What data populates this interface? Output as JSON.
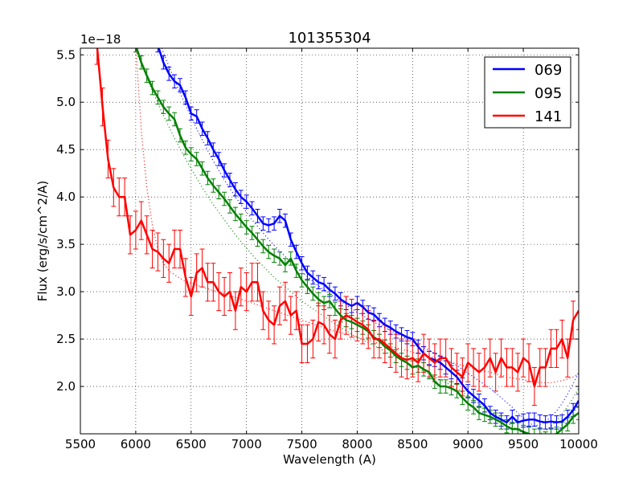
{
  "chart_data": {
    "type": "line",
    "title": "101355304",
    "xlabel": "Wavelength (A)",
    "ylabel": "Flux (erg/s/cm^2/A)",
    "y_scale_label": "1e−18",
    "xlim": [
      5500,
      10000
    ],
    "ylim": [
      1.5,
      5.57
    ],
    "xticks": [
      5500,
      6000,
      6500,
      7000,
      7500,
      8000,
      8500,
      9000,
      9500,
      10000
    ],
    "yticks": [
      2.0,
      2.5,
      3.0,
      3.5,
      4.0,
      4.5,
      5.0,
      5.5
    ],
    "ytick_labels": [
      "2.0",
      "2.5",
      "3.0",
      "3.5",
      "4.0",
      "4.5",
      "5.0",
      "5.5"
    ],
    "grid": true,
    "legend_position": "top-right",
    "series": [
      {
        "name": "069",
        "color": "#0000ff",
        "x": [
          6200,
          6250,
          6300,
          6350,
          6400,
          6450,
          6500,
          6550,
          6600,
          6650,
          6700,
          6750,
          6800,
          6850,
          6900,
          6950,
          7000,
          7050,
          7100,
          7150,
          7200,
          7250,
          7300,
          7350,
          7400,
          7450,
          7500,
          7550,
          7600,
          7650,
          7700,
          7750,
          7800,
          7850,
          7900,
          7950,
          8000,
          8050,
          8100,
          8150,
          8200,
          8250,
          8300,
          8350,
          8400,
          8450,
          8500,
          8550,
          8600,
          8650,
          8700,
          8750,
          8800,
          8850,
          8900,
          8950,
          9000,
          9050,
          9100,
          9150,
          9200,
          9250,
          9300,
          9350,
          9400,
          9450,
          9500,
          9550,
          9600,
          9650,
          9700,
          9750,
          9800,
          9850,
          9900,
          9950,
          10000
        ],
        "y": [
          5.6,
          5.42,
          5.3,
          5.22,
          5.18,
          5.05,
          4.88,
          4.85,
          4.72,
          4.62,
          4.5,
          4.4,
          4.28,
          4.18,
          4.08,
          4.0,
          3.95,
          3.88,
          3.8,
          3.72,
          3.7,
          3.72,
          3.8,
          3.75,
          3.55,
          3.42,
          3.3,
          3.2,
          3.15,
          3.1,
          3.08,
          3.02,
          2.98,
          2.92,
          2.88,
          2.85,
          2.88,
          2.84,
          2.78,
          2.76,
          2.7,
          2.65,
          2.62,
          2.58,
          2.55,
          2.52,
          2.5,
          2.42,
          2.35,
          2.3,
          2.28,
          2.25,
          2.2,
          2.15,
          2.1,
          2.02,
          1.95,
          1.9,
          1.85,
          1.8,
          1.72,
          1.68,
          1.65,
          1.62,
          1.68,
          1.62,
          1.64,
          1.65,
          1.65,
          1.63,
          1.62,
          1.63,
          1.62,
          1.63,
          1.68,
          1.75,
          1.85
        ],
        "err": 0.07,
        "model_dotted": [
          5.7,
          5.52,
          5.38,
          5.24,
          5.1,
          4.97,
          4.84,
          4.72,
          4.6,
          4.49,
          4.38,
          4.28,
          4.18,
          4.09,
          4.0,
          3.92,
          3.84,
          3.76,
          3.69,
          3.62,
          3.55,
          3.49,
          3.43,
          3.37,
          3.31,
          3.26,
          3.21,
          3.16,
          3.11,
          3.06,
          3.02,
          2.98,
          2.94,
          2.9,
          2.86,
          2.82,
          2.78,
          2.75,
          2.71,
          2.68,
          2.65,
          2.62,
          2.59,
          2.56,
          2.53,
          2.5,
          2.47,
          2.44,
          2.41,
          2.38,
          2.35,
          2.32,
          2.29,
          2.25,
          2.22,
          2.18,
          2.14,
          2.1,
          2.06,
          2.02,
          1.98,
          1.93,
          1.88,
          1.83,
          1.78,
          1.72,
          1.67,
          1.62,
          1.58,
          1.6,
          1.63,
          1.68,
          1.74,
          1.82,
          1.92,
          2.03,
          2.15
        ]
      },
      {
        "name": "095",
        "color": "#008000",
        "x": [
          6000,
          6050,
          6100,
          6150,
          6200,
          6250,
          6300,
          6350,
          6400,
          6450,
          6500,
          6550,
          6600,
          6650,
          6700,
          6750,
          6800,
          6850,
          6900,
          6950,
          7000,
          7050,
          7100,
          7150,
          7200,
          7250,
          7300,
          7350,
          7400,
          7450,
          7500,
          7550,
          7600,
          7650,
          7700,
          7750,
          7800,
          7850,
          7900,
          7950,
          8000,
          8050,
          8100,
          8150,
          8200,
          8250,
          8300,
          8350,
          8400,
          8450,
          8500,
          8550,
          8600,
          8650,
          8700,
          8750,
          8800,
          8850,
          8900,
          8950,
          9000,
          9050,
          9100,
          9150,
          9200,
          9250,
          9300,
          9350,
          9400,
          9450,
          9500,
          9550,
          9600,
          9650,
          9700,
          9750,
          9800,
          9850,
          9900,
          9950,
          10000
        ],
        "y": [
          5.6,
          5.42,
          5.28,
          5.15,
          5.05,
          4.95,
          4.88,
          4.82,
          4.65,
          4.52,
          4.45,
          4.4,
          4.3,
          4.2,
          4.12,
          4.05,
          3.98,
          3.9,
          3.82,
          3.75,
          3.68,
          3.62,
          3.55,
          3.48,
          3.42,
          3.38,
          3.35,
          3.28,
          3.35,
          3.22,
          3.12,
          3.05,
          2.98,
          2.92,
          2.88,
          2.9,
          2.82,
          2.75,
          2.7,
          2.68,
          2.65,
          2.62,
          2.58,
          2.52,
          2.48,
          2.42,
          2.38,
          2.32,
          2.28,
          2.25,
          2.2,
          2.22,
          2.18,
          2.15,
          2.05,
          2.0,
          2.0,
          1.98,
          1.95,
          1.88,
          1.82,
          1.78,
          1.72,
          1.7,
          1.68,
          1.65,
          1.62,
          1.58,
          1.55,
          1.55,
          1.52,
          1.5,
          1.48,
          1.48,
          1.45,
          1.48,
          1.5,
          1.55,
          1.6,
          1.68,
          1.72
        ],
        "err": 0.07,
        "model_dotted": [
          5.55,
          5.4,
          5.26,
          5.12,
          4.99,
          4.86,
          4.74,
          4.62,
          4.51,
          4.4,
          4.3,
          4.2,
          4.1,
          4.01,
          3.92,
          3.84,
          3.76,
          3.68,
          3.6,
          3.53,
          3.46,
          3.39,
          3.33,
          3.27,
          3.21,
          3.15,
          3.1,
          3.05,
          3.0,
          2.95,
          2.9,
          2.86,
          2.82,
          2.78,
          2.74,
          2.7,
          2.66,
          2.62,
          2.59,
          2.55,
          2.52,
          2.49,
          2.46,
          2.43,
          2.4,
          2.37,
          2.34,
          2.31,
          2.28,
          2.25,
          2.22,
          2.19,
          2.16,
          2.13,
          2.1,
          2.07,
          2.04,
          2.01,
          1.98,
          1.94,
          1.9,
          1.86,
          1.82,
          1.78,
          1.74,
          1.7,
          1.66,
          1.62,
          1.58,
          1.54,
          1.5,
          1.48,
          1.48,
          1.5,
          1.53,
          1.58,
          1.64,
          1.71,
          1.79,
          1.88,
          1.98
        ]
      },
      {
        "name": "141",
        "color": "#ff0000",
        "x": [
          5650,
          5700,
          5750,
          5800,
          5850,
          5900,
          5950,
          6000,
          6050,
          6100,
          6150,
          6200,
          6250,
          6300,
          6350,
          6400,
          6450,
          6500,
          6550,
          6600,
          6650,
          6700,
          6750,
          6800,
          6850,
          6900,
          6950,
          7000,
          7050,
          7100,
          7150,
          7200,
          7250,
          7300,
          7350,
          7400,
          7450,
          7500,
          7550,
          7600,
          7650,
          7700,
          7750,
          7800,
          7850,
          7900,
          7950,
          8000,
          8050,
          8100,
          8150,
          8200,
          8250,
          8300,
          8350,
          8400,
          8450,
          8500,
          8550,
          8600,
          8650,
          8700,
          8750,
          8800,
          8850,
          8900,
          8950,
          9000,
          9050,
          9100,
          9150,
          9200,
          9250,
          9300,
          9350,
          9400,
          9450,
          9500,
          9550,
          9600,
          9650,
          9700,
          9750,
          9800,
          9850,
          9900,
          9950,
          10000
        ],
        "y": [
          5.6,
          4.95,
          4.4,
          4.1,
          4.0,
          4.0,
          3.6,
          3.65,
          3.75,
          3.6,
          3.45,
          3.42,
          3.35,
          3.3,
          3.45,
          3.45,
          3.15,
          2.95,
          3.2,
          3.25,
          3.1,
          3.1,
          3.0,
          2.95,
          3.0,
          2.8,
          3.05,
          3.0,
          3.1,
          3.1,
          2.8,
          2.7,
          2.65,
          2.85,
          2.9,
          2.75,
          2.8,
          2.45,
          2.45,
          2.5,
          2.68,
          2.65,
          2.55,
          2.5,
          2.7,
          2.75,
          2.72,
          2.68,
          2.65,
          2.6,
          2.5,
          2.5,
          2.45,
          2.4,
          2.35,
          2.3,
          2.28,
          2.3,
          2.25,
          2.35,
          2.3,
          2.25,
          2.3,
          2.3,
          2.2,
          2.15,
          2.1,
          2.25,
          2.2,
          2.15,
          2.2,
          2.3,
          2.15,
          2.3,
          2.2,
          2.2,
          2.15,
          2.3,
          2.25,
          2.0,
          2.2,
          2.2,
          2.4,
          2.4,
          2.5,
          2.3,
          2.7,
          2.8
        ],
        "err": 0.2,
        "model_dotted": [
          null,
          null,
          null,
          null,
          null,
          null,
          null,
          5.6,
          4.7,
          4.1,
          3.7,
          3.45,
          3.3,
          3.22,
          3.18,
          3.14,
          3.11,
          3.09,
          3.07,
          3.05,
          3.03,
          3.01,
          3.0,
          2.98,
          2.96,
          2.94,
          2.92,
          2.9,
          2.88,
          2.86,
          2.84,
          2.82,
          2.8,
          2.78,
          2.76,
          2.74,
          2.72,
          2.7,
          2.68,
          2.66,
          2.64,
          2.62,
          2.6,
          2.58,
          2.57,
          2.55,
          2.54,
          2.52,
          2.5,
          2.49,
          2.47,
          2.45,
          2.44,
          2.42,
          2.41,
          2.39,
          2.38,
          2.36,
          2.35,
          2.33,
          2.32,
          2.3,
          2.28,
          2.27,
          2.25,
          2.24,
          2.22,
          2.21,
          2.19,
          2.18,
          2.16,
          2.15,
          2.13,
          2.12,
          2.1,
          2.09,
          2.08,
          2.07,
          2.06,
          2.05,
          2.04,
          2.04,
          2.04,
          2.05,
          2.06,
          2.08,
          2.1,
          2.13
        ]
      }
    ]
  }
}
